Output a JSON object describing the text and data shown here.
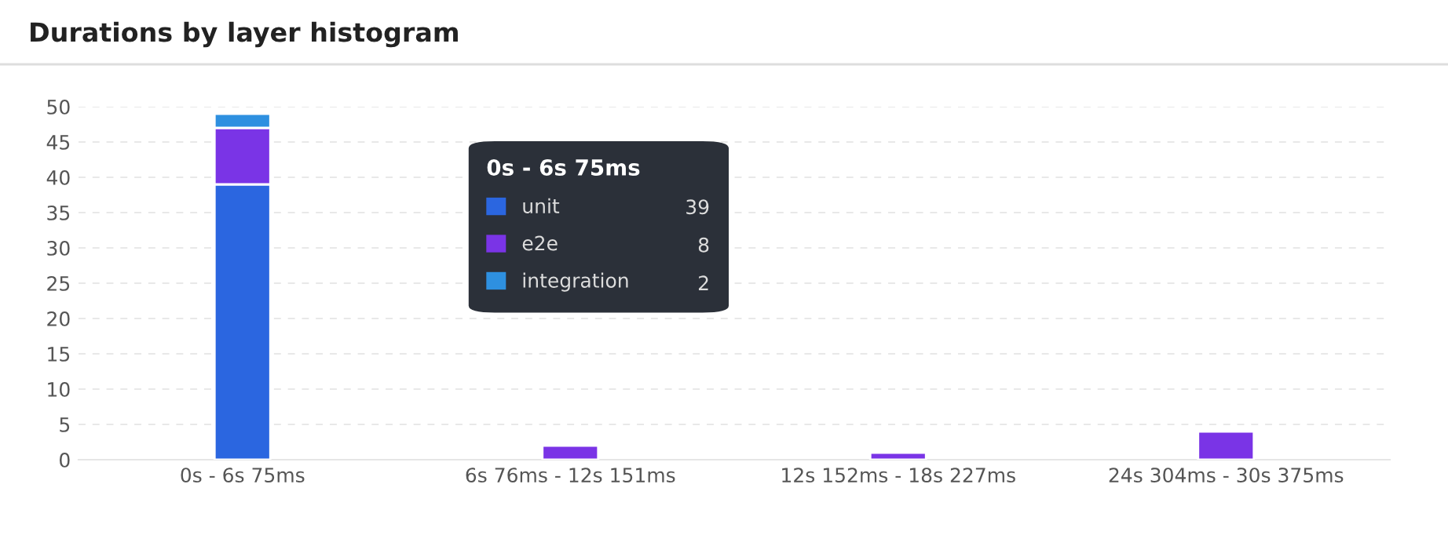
{
  "chart_data": {
    "type": "bar",
    "title": "Durations by layer histogram",
    "stacked": true,
    "categories": [
      "0s - 6s 75ms",
      "6s 76ms - 12s 151ms",
      "12s 152ms - 18s 227ms",
      "24s 304ms - 30s 375ms"
    ],
    "series": [
      {
        "name": "unit",
        "color": "#2b66e0",
        "values": [
          39,
          null,
          null,
          null
        ]
      },
      {
        "name": "e2e",
        "color": "#7a34e6",
        "values": [
          8,
          2,
          1,
          4
        ]
      },
      {
        "name": "integration",
        "color": "#2e90e0",
        "values": [
          2,
          null,
          null,
          null
        ]
      }
    ],
    "ylim": [
      0,
      50
    ],
    "yticks": [
      0,
      5,
      10,
      15,
      20,
      25,
      30,
      35,
      40,
      45,
      50
    ],
    "grid": "y",
    "legend": "top left",
    "legend_title": "0s - 6s 75ms",
    "annotations": [
      "39",
      "8",
      "2"
    ]
  }
}
